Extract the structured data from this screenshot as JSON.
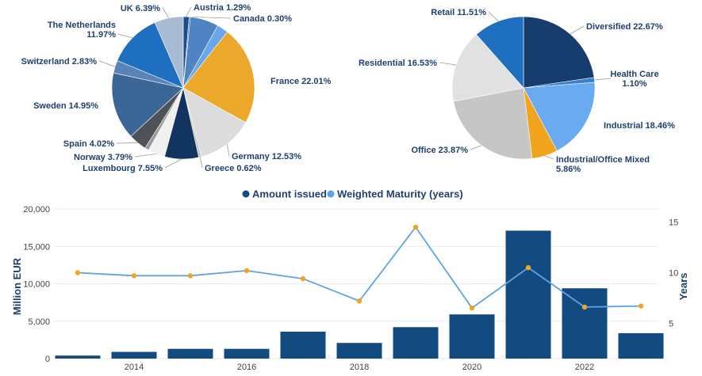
{
  "colors": {
    "bar": "#134a80",
    "line": "#5ba3e8",
    "marker": "#f1a51e",
    "text": "#1f3f6e",
    "grid": "#e5e5e5"
  },
  "chart_data": [
    {
      "type": "pie",
      "slices": [
        {
          "label": "Austria 1.29%",
          "value": 1.29,
          "color": "#1c4d86"
        },
        {
          "label": "Canada 0.30%",
          "value": 0.3,
          "color": "#2c66a8"
        },
        {
          "label": "",
          "value": 6.3,
          "color": "#4f83c3"
        },
        {
          "label": "",
          "value": 2.5,
          "color": "#6aa6ea"
        },
        {
          "label": "France 22.01%",
          "value": 22.01,
          "color": "#eba82a"
        },
        {
          "label": "Germany 12.53%",
          "value": 12.53,
          "color": "#dcdcdc"
        },
        {
          "label": "Greece 0.62%",
          "value": 0.62,
          "color": "#c8c8c8"
        },
        {
          "label": "Luxembourg 7.55%",
          "value": 7.55,
          "color": "#12355f"
        },
        {
          "label": "Norway 3.79%",
          "value": 3.79,
          "color": "#f0f0f0"
        },
        {
          "label": "",
          "value": 0.9,
          "color": "#9a9a9a"
        },
        {
          "label": "Spain 4.02%",
          "value": 4.02,
          "color": "#4f5256"
        },
        {
          "label": "Sweden 14.95%",
          "value": 14.95,
          "color": "#3b6798"
        },
        {
          "label": "Switzerland 2.83%",
          "value": 2.83,
          "color": "#5a84b7"
        },
        {
          "label": "The Netherlands 11.97%",
          "value": 11.97,
          "color": "#1f6fc1"
        },
        {
          "label": "UK 6.39%",
          "value": 6.39,
          "color": "#a7bbd2"
        }
      ]
    },
    {
      "type": "pie",
      "slices": [
        {
          "label": "Diversified 22.67%",
          "value": 22.67,
          "color": "#163d6d"
        },
        {
          "label": "Health Care 1.10%",
          "value": 1.1,
          "color": "#3c7fce"
        },
        {
          "label": "Industrial 18.46%",
          "value": 18.46,
          "color": "#69aaf0"
        },
        {
          "label": "Industrial/Office Mixed 5.86%",
          "value": 5.86,
          "color": "#f1a51e"
        },
        {
          "label": "Office 23.87%",
          "value": 23.87,
          "color": "#c6c6c6"
        },
        {
          "label": "Residential 16.53%",
          "value": 16.53,
          "color": "#e1e1e1"
        },
        {
          "label": "Retail 11.51%",
          "value": 11.51,
          "color": "#1f6fc1"
        }
      ]
    },
    {
      "type": "bar",
      "x": [
        2013,
        2014,
        2015,
        2016,
        2017,
        2018,
        2019,
        2020,
        2021,
        2022,
        2023
      ],
      "xticks": [
        2014,
        2016,
        2018,
        2020,
        2022
      ],
      "series": [
        {
          "name": "Amount issued",
          "type": "bar",
          "axis": "left",
          "values": [
            400,
            900,
            1300,
            1300,
            3600,
            2100,
            4200,
            5900,
            17100,
            9400,
            3400
          ]
        },
        {
          "name": "Weighted Maturity (years)",
          "type": "line",
          "axis": "right",
          "values": [
            10.0,
            9.7,
            9.7,
            10.2,
            9.4,
            7.2,
            14.5,
            6.5,
            10.5,
            6.6,
            6.7
          ]
        }
      ],
      "ylabel": "Million EUR",
      "ylim": [
        0,
        20000
      ],
      "yticks": [
        0,
        5000,
        10000,
        15000,
        20000
      ],
      "ytick_labels": [
        "0",
        "5,000",
        "10,000",
        "15,000",
        "20,000"
      ],
      "y2label": "Years",
      "y2lim": [
        1.5,
        16.3
      ],
      "y2ticks": [
        5,
        10,
        15
      ],
      "legend": "top-center"
    }
  ]
}
